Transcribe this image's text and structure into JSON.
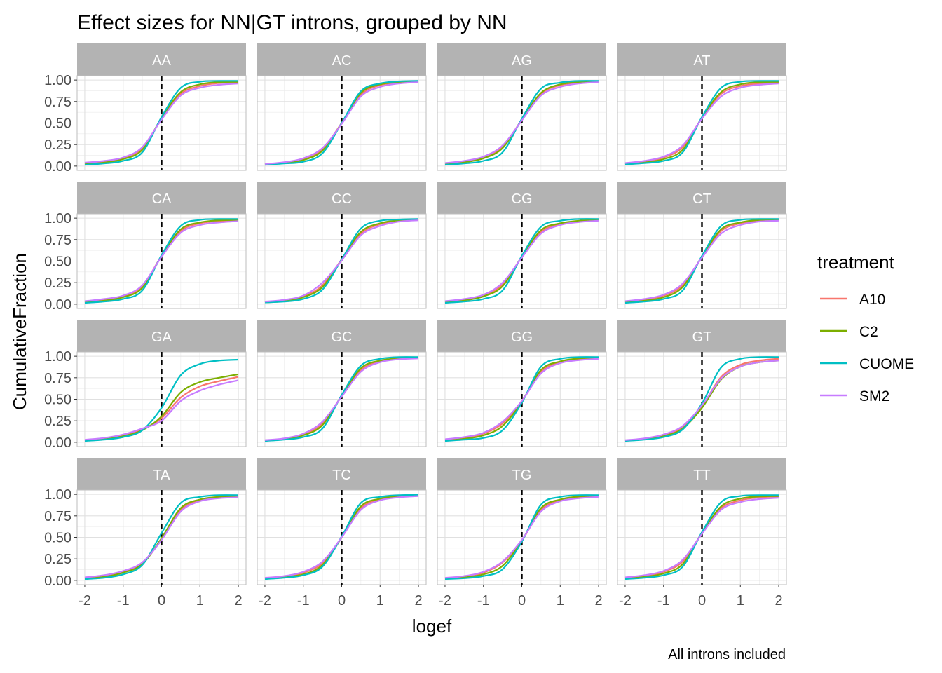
{
  "chart_data": {
    "type": "line",
    "title": "Effect sizes for NN|GT introns, grouped by NN",
    "xlabel": "logef",
    "ylabel": "CumulativeFraction",
    "caption": "All introns included",
    "xlim": [
      -2.2,
      2.2
    ],
    "ylim": [
      -0.05,
      1.05
    ],
    "x_ticks": [
      -2,
      -1,
      0,
      1,
      2
    ],
    "x_tick_labels": [
      "-2",
      "-1",
      "0",
      "1",
      "2"
    ],
    "y_ticks": [
      0,
      0.25,
      0.5,
      0.75,
      1
    ],
    "y_tick_labels": [
      "0.00",
      "0.25",
      "0.50",
      "0.75",
      "1.00"
    ],
    "reference_line": {
      "x": 0,
      "style": "dashed",
      "color": "#000000"
    },
    "legend": {
      "title": "treatment",
      "position": "right",
      "entries": [
        {
          "name": "A10",
          "color": "#F8766D"
        },
        {
          "name": "C2",
          "color": "#7CAE00"
        },
        {
          "name": "CUOME",
          "color": "#00BFC4"
        },
        {
          "name": "SM2",
          "color": "#C77CFF"
        }
      ]
    },
    "x_grid": [
      -2,
      -1.5,
      -1,
      -0.5,
      0,
      0.5,
      1,
      1.5,
      2
    ],
    "facets": [
      {
        "label": "AA",
        "series": [
          {
            "name": "A10",
            "values": [
              0.03,
              0.05,
              0.09,
              0.21,
              0.55,
              0.84,
              0.93,
              0.965,
              0.975
            ]
          },
          {
            "name": "C2",
            "values": [
              0.02,
              0.04,
              0.08,
              0.19,
              0.56,
              0.86,
              0.95,
              0.975,
              0.98
            ]
          },
          {
            "name": "CUOME",
            "values": [
              0.015,
              0.03,
              0.06,
              0.16,
              0.57,
              0.91,
              0.98,
              0.99,
              0.99
            ]
          },
          {
            "name": "SM2",
            "values": [
              0.04,
              0.06,
              0.1,
              0.22,
              0.54,
              0.82,
              0.91,
              0.945,
              0.96
            ]
          }
        ]
      },
      {
        "label": "AC",
        "series": [
          {
            "name": "A10",
            "values": [
              0.02,
              0.04,
              0.08,
              0.2,
              0.5,
              0.83,
              0.94,
              0.97,
              0.98
            ]
          },
          {
            "name": "C2",
            "values": [
              0.02,
              0.035,
              0.07,
              0.18,
              0.5,
              0.85,
              0.95,
              0.975,
              0.985
            ]
          },
          {
            "name": "CUOME",
            "values": [
              0.015,
              0.03,
              0.05,
              0.15,
              0.5,
              0.87,
              0.96,
              0.985,
              0.99
            ]
          },
          {
            "name": "SM2",
            "values": [
              0.025,
              0.045,
              0.09,
              0.21,
              0.49,
              0.81,
              0.92,
              0.96,
              0.975
            ]
          }
        ]
      },
      {
        "label": "AG",
        "series": [
          {
            "name": "A10",
            "values": [
              0.03,
              0.05,
              0.1,
              0.22,
              0.54,
              0.84,
              0.94,
              0.97,
              0.98
            ]
          },
          {
            "name": "C2",
            "values": [
              0.025,
              0.045,
              0.09,
              0.21,
              0.54,
              0.85,
              0.95,
              0.975,
              0.985
            ]
          },
          {
            "name": "CUOME",
            "values": [
              0.015,
              0.03,
              0.06,
              0.16,
              0.55,
              0.9,
              0.97,
              0.99,
              0.99
            ]
          },
          {
            "name": "SM2",
            "values": [
              0.035,
              0.06,
              0.11,
              0.24,
              0.53,
              0.82,
              0.92,
              0.96,
              0.975
            ]
          }
        ]
      },
      {
        "label": "AT",
        "series": [
          {
            "name": "A10",
            "values": [
              0.03,
              0.05,
              0.1,
              0.22,
              0.56,
              0.84,
              0.93,
              0.96,
              0.97
            ]
          },
          {
            "name": "C2",
            "values": [
              0.02,
              0.04,
              0.08,
              0.19,
              0.56,
              0.86,
              0.95,
              0.975,
              0.98
            ]
          },
          {
            "name": "CUOME",
            "values": [
              0.02,
              0.035,
              0.06,
              0.16,
              0.57,
              0.91,
              0.98,
              0.99,
              0.99
            ]
          },
          {
            "name": "SM2",
            "values": [
              0.035,
              0.06,
              0.11,
              0.24,
              0.55,
              0.81,
              0.91,
              0.945,
              0.96
            ]
          }
        ]
      },
      {
        "label": "CA",
        "series": [
          {
            "name": "A10",
            "values": [
              0.03,
              0.05,
              0.09,
              0.21,
              0.56,
              0.85,
              0.94,
              0.965,
              0.975
            ]
          },
          {
            "name": "C2",
            "values": [
              0.02,
              0.04,
              0.08,
              0.19,
              0.56,
              0.87,
              0.95,
              0.975,
              0.98
            ]
          },
          {
            "name": "CUOME",
            "values": [
              0.015,
              0.03,
              0.06,
              0.16,
              0.57,
              0.91,
              0.98,
              0.99,
              0.99
            ]
          },
          {
            "name": "SM2",
            "values": [
              0.035,
              0.06,
              0.1,
              0.22,
              0.55,
              0.83,
              0.92,
              0.95,
              0.965
            ]
          }
        ]
      },
      {
        "label": "CC",
        "series": [
          {
            "name": "A10",
            "values": [
              0.025,
              0.04,
              0.09,
              0.22,
              0.52,
              0.82,
              0.93,
              0.97,
              0.98
            ]
          },
          {
            "name": "C2",
            "values": [
              0.02,
              0.035,
              0.08,
              0.2,
              0.52,
              0.84,
              0.94,
              0.975,
              0.985
            ]
          },
          {
            "name": "CUOME",
            "values": [
              0.02,
              0.03,
              0.06,
              0.17,
              0.52,
              0.88,
              0.97,
              0.985,
              0.99
            ]
          },
          {
            "name": "SM2",
            "values": [
              0.03,
              0.05,
              0.1,
              0.25,
              0.51,
              0.8,
              0.91,
              0.96,
              0.975
            ]
          }
        ]
      },
      {
        "label": "CG",
        "series": [
          {
            "name": "A10",
            "values": [
              0.03,
              0.05,
              0.1,
              0.23,
              0.55,
              0.84,
              0.93,
              0.96,
              0.975
            ]
          },
          {
            "name": "C2",
            "values": [
              0.025,
              0.045,
              0.09,
              0.21,
              0.55,
              0.86,
              0.94,
              0.97,
              0.98
            ]
          },
          {
            "name": "CUOME",
            "values": [
              0.015,
              0.03,
              0.06,
              0.16,
              0.56,
              0.9,
              0.97,
              0.99,
              0.99
            ]
          },
          {
            "name": "SM2",
            "values": [
              0.035,
              0.06,
              0.11,
              0.25,
              0.54,
              0.82,
              0.92,
              0.955,
              0.97
            ]
          }
        ]
      },
      {
        "label": "CT",
        "series": [
          {
            "name": "A10",
            "values": [
              0.03,
              0.05,
              0.1,
              0.22,
              0.55,
              0.85,
              0.94,
              0.97,
              0.98
            ]
          },
          {
            "name": "C2",
            "values": [
              0.02,
              0.04,
              0.08,
              0.2,
              0.55,
              0.87,
              0.95,
              0.98,
              0.985
            ]
          },
          {
            "name": "CUOME",
            "values": [
              0.015,
              0.03,
              0.06,
              0.16,
              0.56,
              0.91,
              0.98,
              0.99,
              0.99
            ]
          },
          {
            "name": "SM2",
            "values": [
              0.035,
              0.06,
              0.11,
              0.24,
              0.54,
              0.82,
              0.92,
              0.96,
              0.97
            ]
          }
        ]
      },
      {
        "label": "GA",
        "series": [
          {
            "name": "A10",
            "values": [
              0.02,
              0.04,
              0.08,
              0.15,
              0.28,
              0.52,
              0.65,
              0.71,
              0.76
            ]
          },
          {
            "name": "C2",
            "values": [
              0.02,
              0.035,
              0.07,
              0.14,
              0.3,
              0.58,
              0.7,
              0.75,
              0.79
            ]
          },
          {
            "name": "CUOME",
            "values": [
              0.015,
              0.03,
              0.06,
              0.14,
              0.4,
              0.78,
              0.91,
              0.95,
              0.96
            ]
          },
          {
            "name": "SM2",
            "values": [
              0.03,
              0.05,
              0.09,
              0.16,
              0.25,
              0.48,
              0.6,
              0.67,
              0.72
            ]
          }
        ]
      },
      {
        "label": "GC",
        "series": [
          {
            "name": "A10",
            "values": [
              0.02,
              0.04,
              0.09,
              0.22,
              0.54,
              0.84,
              0.94,
              0.97,
              0.98
            ]
          },
          {
            "name": "C2",
            "values": [
              0.02,
              0.035,
              0.08,
              0.2,
              0.54,
              0.86,
              0.95,
              0.975,
              0.985
            ]
          },
          {
            "name": "CUOME",
            "values": [
              0.015,
              0.03,
              0.06,
              0.16,
              0.55,
              0.89,
              0.97,
              0.99,
              0.99
            ]
          },
          {
            "name": "SM2",
            "values": [
              0.025,
              0.045,
              0.1,
              0.24,
              0.53,
              0.82,
              0.93,
              0.965,
              0.975
            ]
          }
        ]
      },
      {
        "label": "GG",
        "series": [
          {
            "name": "A10",
            "values": [
              0.03,
              0.05,
              0.1,
              0.22,
              0.48,
              0.82,
              0.93,
              0.965,
              0.98
            ]
          },
          {
            "name": "C2",
            "values": [
              0.02,
              0.04,
              0.08,
              0.19,
              0.47,
              0.84,
              0.94,
              0.975,
              0.985
            ]
          },
          {
            "name": "CUOME",
            "values": [
              0.015,
              0.03,
              0.05,
              0.14,
              0.46,
              0.88,
              0.97,
              0.99,
              0.99
            ]
          },
          {
            "name": "SM2",
            "values": [
              0.035,
              0.06,
              0.11,
              0.24,
              0.48,
              0.8,
              0.92,
              0.955,
              0.97
            ]
          }
        ]
      },
      {
        "label": "GT",
        "series": [
          {
            "name": "A10",
            "values": [
              0.02,
              0.04,
              0.08,
              0.18,
              0.42,
              0.76,
              0.9,
              0.95,
              0.97
            ]
          },
          {
            "name": "C2",
            "values": [
              0.02,
              0.035,
              0.07,
              0.16,
              0.4,
              0.73,
              0.88,
              0.93,
              0.95
            ]
          },
          {
            "name": "CUOME",
            "values": [
              0.015,
              0.03,
              0.06,
              0.15,
              0.45,
              0.87,
              0.97,
              0.99,
              0.99
            ]
          },
          {
            "name": "SM2",
            "values": [
              0.025,
              0.045,
              0.09,
              0.19,
              0.43,
              0.74,
              0.88,
              0.93,
              0.95
            ]
          }
        ]
      },
      {
        "label": "TA",
        "series": [
          {
            "name": "A10",
            "values": [
              0.03,
              0.05,
              0.1,
              0.2,
              0.48,
              0.82,
              0.93,
              0.965,
              0.97
            ]
          },
          {
            "name": "C2",
            "values": [
              0.02,
              0.04,
              0.09,
              0.19,
              0.49,
              0.84,
              0.94,
              0.97,
              0.975
            ]
          },
          {
            "name": "CUOME",
            "values": [
              0.015,
              0.03,
              0.07,
              0.18,
              0.55,
              0.9,
              0.97,
              0.99,
              0.99
            ]
          },
          {
            "name": "SM2",
            "values": [
              0.035,
              0.06,
              0.11,
              0.21,
              0.47,
              0.8,
              0.92,
              0.955,
              0.965
            ]
          }
        ]
      },
      {
        "label": "TC",
        "series": [
          {
            "name": "A10",
            "values": [
              0.025,
              0.045,
              0.09,
              0.2,
              0.5,
              0.84,
              0.94,
              0.975,
              0.985
            ]
          },
          {
            "name": "C2",
            "values": [
              0.02,
              0.04,
              0.07,
              0.18,
              0.5,
              0.86,
              0.95,
              0.98,
              0.99
            ]
          },
          {
            "name": "CUOME",
            "values": [
              0.015,
              0.03,
              0.06,
              0.16,
              0.51,
              0.9,
              0.97,
              0.99,
              0.995
            ]
          },
          {
            "name": "SM2",
            "values": [
              0.03,
              0.05,
              0.1,
              0.22,
              0.5,
              0.82,
              0.93,
              0.965,
              0.98
            ]
          }
        ]
      },
      {
        "label": "TG",
        "series": [
          {
            "name": "A10",
            "values": [
              0.025,
              0.045,
              0.09,
              0.21,
              0.46,
              0.82,
              0.93,
              0.965,
              0.98
            ]
          },
          {
            "name": "C2",
            "values": [
              0.02,
              0.035,
              0.07,
              0.17,
              0.46,
              0.84,
              0.94,
              0.975,
              0.985
            ]
          },
          {
            "name": "CUOME",
            "values": [
              0.015,
              0.025,
              0.05,
              0.13,
              0.45,
              0.88,
              0.97,
              0.99,
              0.99
            ]
          },
          {
            "name": "SM2",
            "values": [
              0.03,
              0.05,
              0.1,
              0.22,
              0.47,
              0.8,
              0.92,
              0.955,
              0.97
            ]
          }
        ]
      },
      {
        "label": "TT",
        "series": [
          {
            "name": "A10",
            "values": [
              0.03,
              0.05,
              0.1,
              0.22,
              0.55,
              0.84,
              0.93,
              0.965,
              0.975
            ]
          },
          {
            "name": "C2",
            "values": [
              0.02,
              0.04,
              0.08,
              0.19,
              0.55,
              0.86,
              0.95,
              0.975,
              0.98
            ]
          },
          {
            "name": "CUOME",
            "values": [
              0.015,
              0.03,
              0.06,
              0.16,
              0.56,
              0.91,
              0.98,
              0.99,
              0.99
            ]
          },
          {
            "name": "SM2",
            "values": [
              0.035,
              0.06,
              0.11,
              0.24,
              0.54,
              0.82,
              0.91,
              0.945,
              0.96
            ]
          }
        ]
      }
    ]
  }
}
